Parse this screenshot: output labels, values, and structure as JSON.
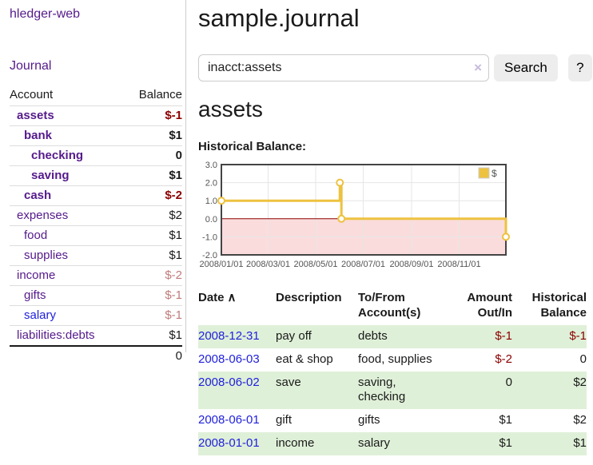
{
  "app": {
    "brand": "hledger-web",
    "nav_journal": "Journal"
  },
  "sidebar": {
    "header": {
      "account": "Account",
      "balance": "Balance"
    },
    "accounts": [
      {
        "name": "assets",
        "balance": "$-1",
        "indent": 1,
        "bold": true
      },
      {
        "name": "bank",
        "balance": "$1",
        "indent": 2,
        "bold": true
      },
      {
        "name": "checking",
        "balance": "0",
        "indent": 3,
        "bold": true
      },
      {
        "name": "saving",
        "balance": "$1",
        "indent": 3,
        "bold": true
      },
      {
        "name": "cash",
        "balance": "$-2",
        "indent": 2,
        "bold": true
      },
      {
        "name": "expenses",
        "balance": "$2",
        "indent": 1,
        "bold": false
      },
      {
        "name": "food",
        "balance": "$1",
        "indent": 2,
        "bold": false
      },
      {
        "name": "supplies",
        "balance": "$1",
        "indent": 2,
        "bold": false
      },
      {
        "name": "income",
        "balance": "$-2",
        "indent": 1,
        "bold": false
      },
      {
        "name": "gifts",
        "balance": "$-1",
        "indent": 2,
        "bold": false
      },
      {
        "name": "salary",
        "balance": "$-1",
        "indent": 2,
        "bold": false
      },
      {
        "name": "liabilities:debts",
        "balance": "$1",
        "indent": 1,
        "bold": false
      }
    ],
    "total": "0"
  },
  "main": {
    "title": "sample.journal",
    "search": {
      "value": "inacct:assets",
      "clear_icon": "×",
      "button": "Search",
      "help_button": "?"
    },
    "account_title": "assets",
    "chart_label": "Historical Balance:"
  },
  "chart_data": {
    "type": "line",
    "step": true,
    "title": "Historical Balance",
    "series": [
      {
        "name": "$",
        "points": [
          {
            "date": "2008-01-01",
            "day": 0,
            "value": 1
          },
          {
            "date": "2008-06-01",
            "day": 152,
            "value": 2
          },
          {
            "date": "2008-06-03",
            "day": 154,
            "value": 0
          },
          {
            "date": "2008-12-31",
            "day": 365,
            "value": -1
          }
        ]
      }
    ],
    "ylim": [
      -2,
      3
    ],
    "x_range_days": 365,
    "yticks": [
      {
        "label": "3.0",
        "value": 3
      },
      {
        "label": "2.0",
        "value": 2
      },
      {
        "label": "1.0",
        "value": 1
      },
      {
        "label": "0.0",
        "value": 0
      },
      {
        "label": "-1.0",
        "value": -1
      },
      {
        "label": "-2.0",
        "value": -2
      }
    ],
    "xticks": [
      {
        "label": "2008/01/01",
        "day": 0
      },
      {
        "label": "2008/03/01",
        "day": 60
      },
      {
        "label": "2008/05/01",
        "day": 121
      },
      {
        "label": "2008/07/01",
        "day": 182
      },
      {
        "label": "2008/09/01",
        "day": 244
      },
      {
        "label": "2008/11/01",
        "day": 305
      }
    ],
    "grid": true,
    "legend_position": "top-right",
    "colors": {
      "line": "#edc240",
      "marker_fill": "#ffffff",
      "negative_fill": "#fbdcdc",
      "zero_line": "#8b0000",
      "border": "#444444",
      "grid": "#e6e6e6",
      "tick_text": "#545454"
    }
  },
  "register": {
    "columns": [
      "Date",
      "Description",
      "To/From Account(s)",
      "Amount Out/In",
      "Historical Balance"
    ],
    "sort_icon": "∧",
    "rows": [
      {
        "date": "2008-12-31",
        "description": "pay off",
        "tofrom": "debts",
        "amount": "$-1",
        "balance": "$-1"
      },
      {
        "date": "2008-06-03",
        "description": "eat & shop",
        "tofrom": "food, supplies",
        "amount": "$-2",
        "balance": "0"
      },
      {
        "date": "2008-06-02",
        "description": "save",
        "tofrom": "saving,\nchecking",
        "amount": "0",
        "balance": "$2"
      },
      {
        "date": "2008-06-01",
        "description": "gift",
        "tofrom": "gifts",
        "amount": "$1",
        "balance": "$2"
      },
      {
        "date": "2008-01-01",
        "description": "income",
        "tofrom": "salary",
        "amount": "$1",
        "balance": "$1"
      }
    ]
  },
  "colors": {
    "link_purple": "#551a8b",
    "link_blue": "#2121dd",
    "negative_strong": "#8b0000",
    "negative_soft": "#c07b7b",
    "row_stripe_green": "#dff0d8",
    "button_bg": "#ededed",
    "divider": "#cccccc",
    "row_border": "#dddddd",
    "clear_icon": "#c5bbdb",
    "text": "#1a1a1a"
  }
}
